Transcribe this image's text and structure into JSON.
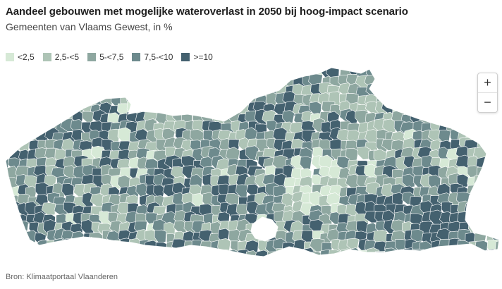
{
  "header": {
    "title": "Aandeel gebouwen met mogelijke wateroverlast in 2050 bij hoog-impact scenario",
    "subtitle": "Gemeenten van Vlaams Gewest, in %"
  },
  "legend": [
    {
      "label": "<2,5",
      "color": "#d6e9d6"
    },
    {
      "label": "2,5-<5",
      "color": "#aec4b6"
    },
    {
      "label": "5-<7,5",
      "color": "#8ea7a0"
    },
    {
      "label": "7,5-<10",
      "color": "#6d8a8d"
    },
    {
      "label": ">=10",
      "color": "#44616f"
    }
  ],
  "zoom": {
    "in_label": "+",
    "out_label": "−"
  },
  "source": "Bron: Klimaatportaal Vlaanderen"
}
